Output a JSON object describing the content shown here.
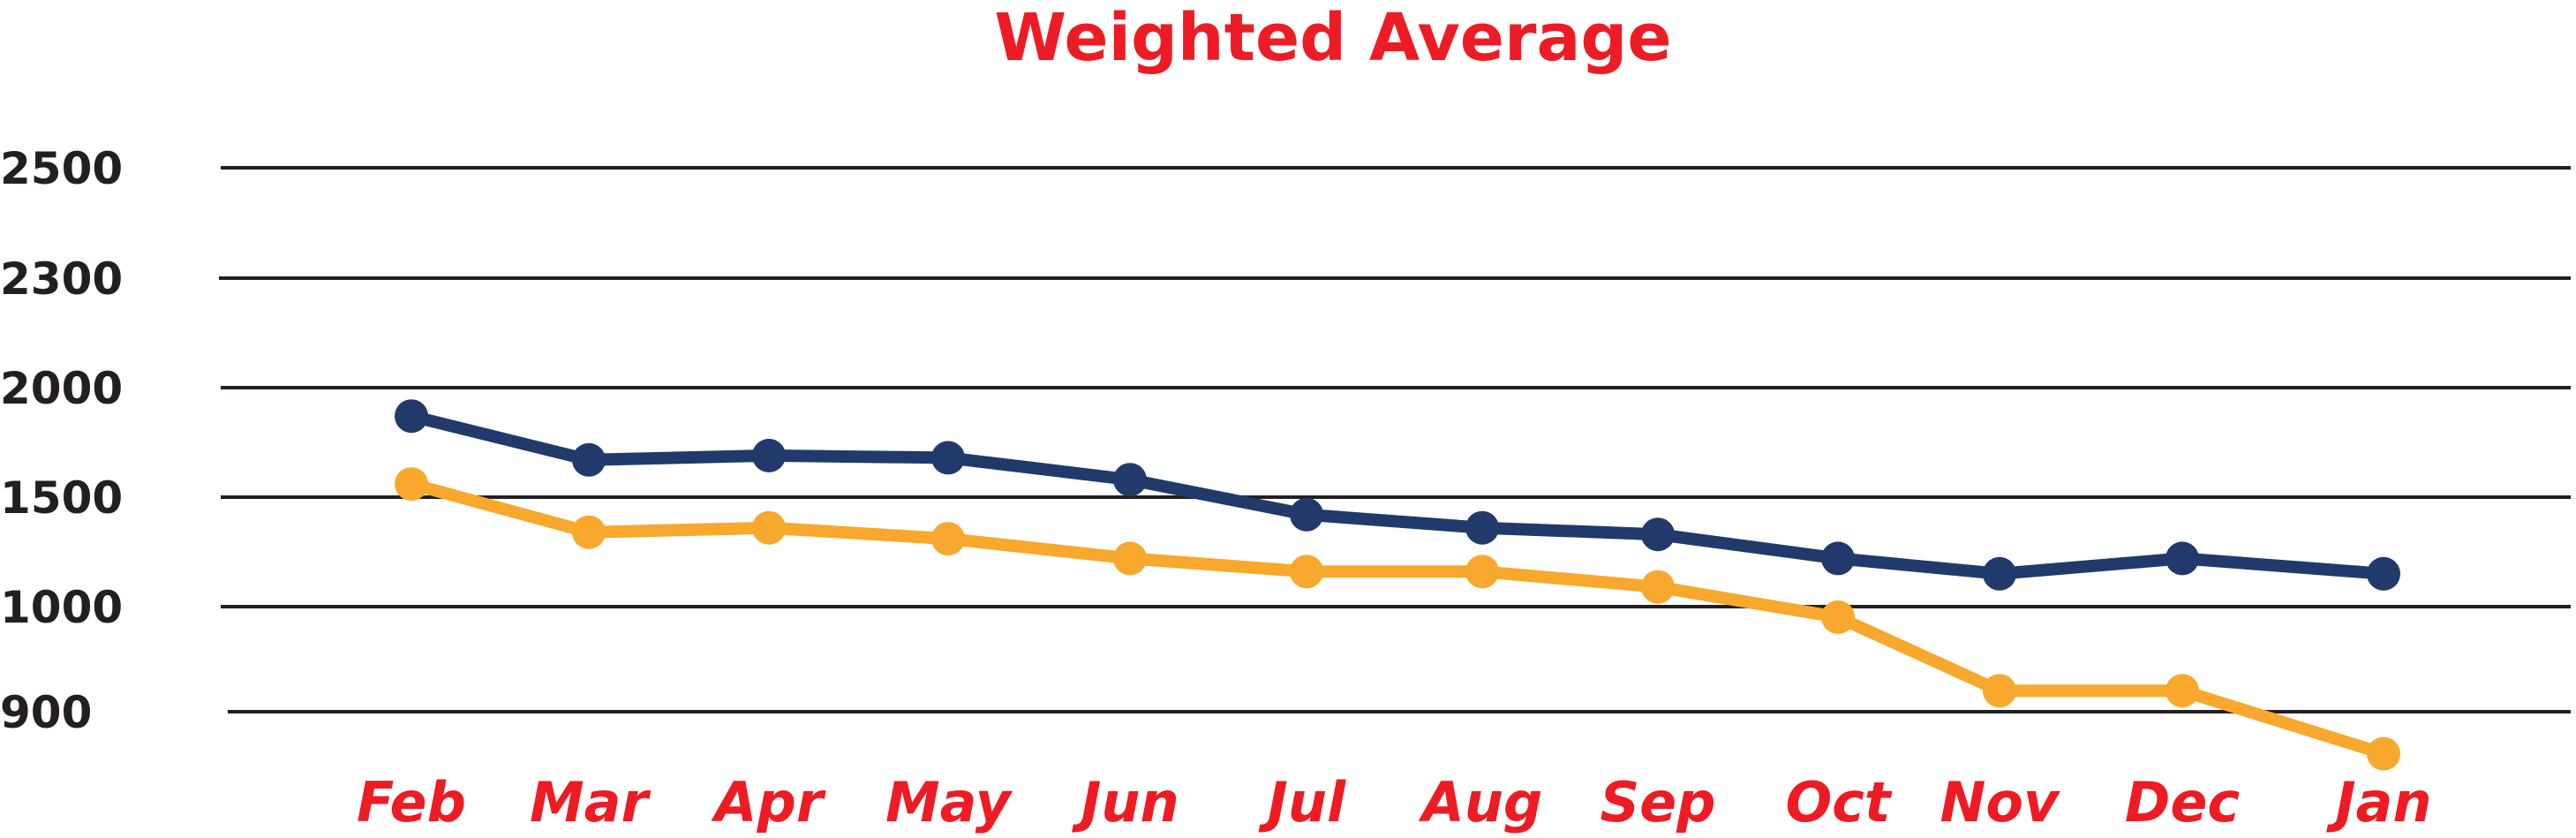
{
  "chart_data": {
    "type": "line",
    "title": "Weighted Average",
    "xlabel": "",
    "ylabel": "",
    "categories": [
      "Feb",
      "Mar",
      "Apr",
      "May",
      "Jun",
      "Jul",
      "Aug",
      "Sep",
      "Oct",
      "Nov",
      "Dec",
      "Jan"
    ],
    "y_ticks": [
      "2500",
      "2300",
      "2000",
      "1500",
      "1000",
      "900"
    ],
    "grid": true,
    "legend": "none",
    "series": [
      {
        "color": "#213a6b",
        "values": [
          1870,
          1670,
          1690,
          1680,
          1580,
          1420,
          1360,
          1330,
          1220,
          1150,
          1220,
          1150
        ]
      },
      {
        "color": "#f8a82c",
        "values": [
          1560,
          1340,
          1360,
          1310,
          1220,
          1160,
          1160,
          1090,
          990,
          920,
          920,
          860
        ]
      }
    ],
    "colors": {
      "title": "#ed1c24",
      "xtick": "#ed1c24",
      "ytick": "#231f20",
      "grid": "#231f20"
    }
  }
}
